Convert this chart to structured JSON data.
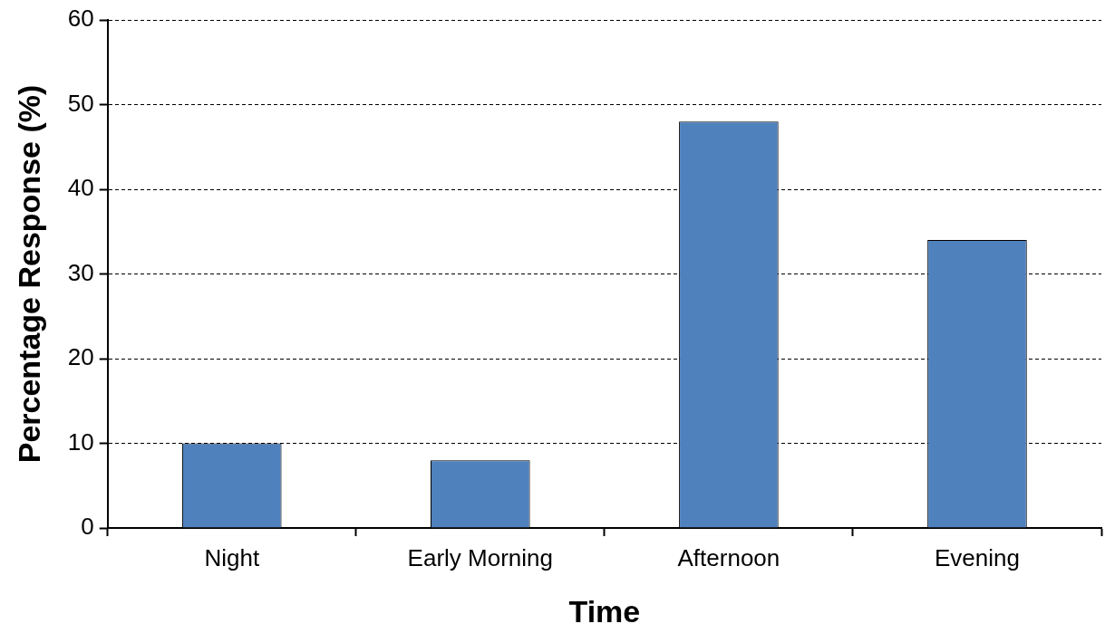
{
  "chart_data": {
    "type": "bar",
    "xlabel": "Time",
    "ylabel": "Percentage Response (%)",
    "categories": [
      "Night",
      "Early Morning",
      "Afternoon",
      "Evening"
    ],
    "values": [
      10,
      8,
      48,
      34
    ],
    "color": "#4f81bd",
    "ylim": [
      0,
      60
    ],
    "yticks": [
      0,
      10,
      20,
      30,
      40,
      50,
      60
    ],
    "grid": "y",
    "legend": false
  }
}
